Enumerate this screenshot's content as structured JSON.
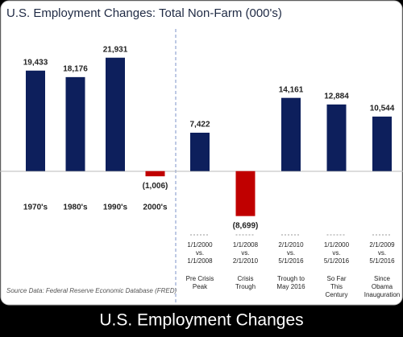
{
  "chart_data": [
    {
      "type": "bar",
      "title": "U.S. Employment Changes:  Total Non-Farm (000's)",
      "categories": [
        "1970's",
        "1980's",
        "1990's",
        "2000's"
      ],
      "values": [
        19433,
        18176,
        21931,
        -1006
      ],
      "value_labels": [
        "19,433",
        "18,176",
        "21,931",
        "(1,006)"
      ],
      "colors": [
        "#0d1f5c",
        "#0d1f5c",
        "#0d1f5c",
        "#c00000"
      ],
      "ylim": [
        -10000,
        25000
      ]
    },
    {
      "type": "bar",
      "categories": [
        [
          "1/1/2000",
          "vs.",
          "1/1/2008"
        ],
        [
          "1/1/2008",
          "vs.",
          "2/1/2010"
        ],
        [
          "2/1/2010",
          "vs.",
          "5/1/2016"
        ],
        [
          "1/1/2000",
          "vs.",
          "5/1/2016"
        ],
        [
          "2/1/2009",
          "vs.",
          "5/1/2016"
        ]
      ],
      "descriptions": [
        [
          "Pre Crisis",
          "Peak"
        ],
        [
          "Crisis",
          "Trough"
        ],
        [
          "Trough to",
          "May 2016"
        ],
        [
          "So Far",
          "This",
          "Century"
        ],
        [
          "Since",
          "Obama",
          "Inauguration"
        ]
      ],
      "values": [
        7422,
        -8699,
        14161,
        12884,
        10544
      ],
      "value_labels": [
        "7,422",
        "(8,699)",
        "14,161",
        "12,884",
        "10,544"
      ],
      "colors": [
        "#0d1f5c",
        "#c00000",
        "#0d1f5c",
        "#0d1f5c",
        "#0d1f5c"
      ],
      "ylim": [
        -10000,
        25000
      ]
    }
  ],
  "source": "Source Data:  Federal Reserve Economic Database (FRED)",
  "caption": "U.S. Employment Changes"
}
